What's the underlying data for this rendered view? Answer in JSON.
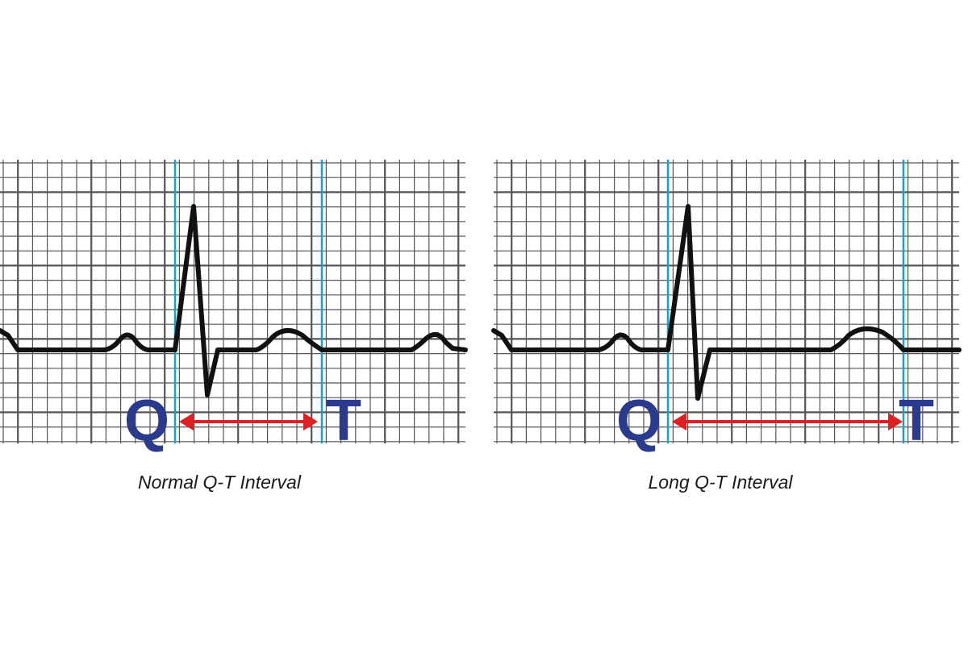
{
  "panels": [
    {
      "id": "normal",
      "caption": "Normal Q-T Interval",
      "q_label": "Q",
      "t_label": "T"
    },
    {
      "id": "long",
      "caption": "Long Q-T Interval",
      "q_label": "Q",
      "t_label": "T"
    }
  ],
  "colors": {
    "grid": "#555555",
    "trace": "#111111",
    "marker_line": "#1aa0cc",
    "letter": "#2a3a8c",
    "arrow": "#e02020"
  }
}
